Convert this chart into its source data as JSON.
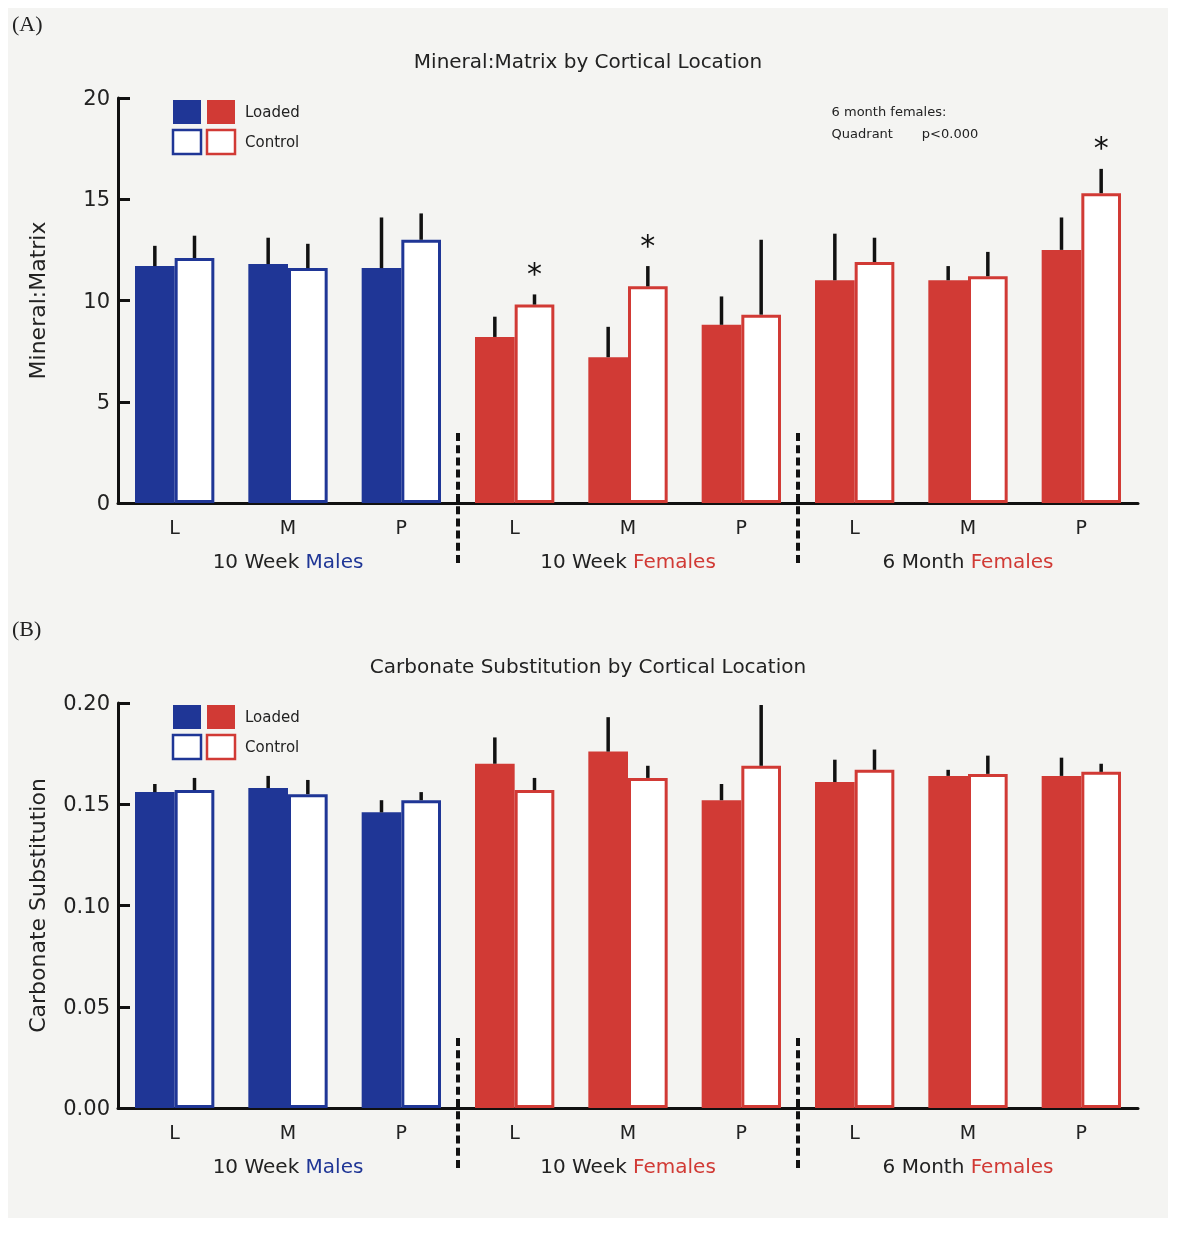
{
  "chart_data": [
    {
      "type": "bar",
      "title": "Mineral:Matrix by Cortical Location",
      "ylabel": "Mineral:Matrix",
      "categories": [
        "L",
        "M",
        "P",
        "L",
        "M",
        "P",
        "L",
        "M",
        "P"
      ],
      "series": [
        {
          "name": "Loaded",
          "colors": [
            "#1f3696",
            "#1f3696",
            "#1f3696",
            "#d13a35",
            "#d13a35",
            "#d13a35",
            "#d13a35",
            "#d13a35",
            "#d13a35"
          ],
          "values": [
            11.7,
            11.8,
            11.6,
            8.2,
            7.2,
            8.8,
            11.0,
            11.0,
            12.5
          ],
          "errors": [
            [
              11.7,
              12.7
            ],
            [
              11.8,
              13.1
            ],
            [
              11.6,
              14.1
            ],
            [
              8.2,
              9.2
            ],
            [
              7.2,
              8.7
            ],
            [
              8.8,
              10.2
            ],
            [
              11.0,
              13.3
            ],
            [
              11.0,
              11.7
            ],
            [
              12.5,
              14.1
            ]
          ]
        },
        {
          "name": "Control",
          "colors": [
            "#1f3696",
            "#1f3696",
            "#1f3696",
            "#d13a35",
            "#d13a35",
            "#d13a35",
            "#d13a35",
            "#d13a35",
            "#d13a35"
          ],
          "values": [
            12.1,
            11.6,
            13.0,
            9.8,
            10.7,
            9.3,
            11.9,
            11.2,
            15.3
          ],
          "errors": [
            [
              12.1,
              13.2
            ],
            [
              11.6,
              12.8
            ],
            [
              13.0,
              14.3
            ],
            [
              9.8,
              10.3
            ],
            [
              10.7,
              11.7
            ],
            [
              9.3,
              13.0
            ],
            [
              11.9,
              13.1
            ],
            [
              11.2,
              12.4
            ],
            [
              15.3,
              16.5
            ]
          ],
          "value_labels": [
            null,
            null,
            null,
            "*",
            "*",
            null,
            null,
            null,
            "*"
          ]
        }
      ],
      "ylim": [
        0,
        20
      ],
      "yticks": [
        0,
        5,
        10,
        15,
        20
      ],
      "grid": false,
      "legend": "top left",
      "annotations": [
        "(A)",
        "6 month females:\nQuadrant       p<0.000",
        "10 Week Males",
        "10 Week Females",
        "6 Month Females"
      ]
    },
    {
      "type": "bar",
      "title": "Carbonate Substitution by Cortical Location",
      "ylabel": "Carbonate Substitution",
      "categories": [
        "L",
        "M",
        "P",
        "L",
        "M",
        "P",
        "L",
        "M",
        "P"
      ],
      "series": [
        {
          "name": "Loaded",
          "colors": [
            "#1f3696",
            "#1f3696",
            "#1f3696",
            "#d13a35",
            "#d13a35",
            "#d13a35",
            "#d13a35",
            "#d13a35",
            "#d13a35"
          ],
          "values": [
            0.156,
            0.158,
            0.146,
            0.17,
            0.176,
            0.152,
            0.161,
            0.164,
            0.164
          ],
          "errors": [
            [
              0.156,
              0.16
            ],
            [
              0.158,
              0.164
            ],
            [
              0.146,
              0.152
            ],
            [
              0.17,
              0.183
            ],
            [
              0.176,
              0.193
            ],
            [
              0.152,
              0.16
            ],
            [
              0.161,
              0.172
            ],
            [
              0.164,
              0.167
            ],
            [
              0.164,
              0.173
            ]
          ]
        },
        {
          "name": "Control",
          "colors": [
            "#1f3696",
            "#1f3696",
            "#1f3696",
            "#d13a35",
            "#d13a35",
            "#d13a35",
            "#d13a35",
            "#d13a35",
            "#d13a35"
          ],
          "values": [
            0.157,
            0.155,
            0.152,
            0.157,
            0.163,
            0.169,
            0.167,
            0.165,
            0.166
          ],
          "errors": [
            [
              0.157,
              0.163
            ],
            [
              0.155,
              0.162
            ],
            [
              0.152,
              0.156
            ],
            [
              0.157,
              0.163
            ],
            [
              0.163,
              0.169
            ],
            [
              0.169,
              0.199
            ],
            [
              0.167,
              0.177
            ],
            [
              0.165,
              0.174
            ],
            [
              0.166,
              0.17
            ]
          ]
        }
      ],
      "ylim": [
        0,
        0.2
      ],
      "yticks": [
        {
          "value": 0,
          "label": "0.00"
        },
        {
          "value": 0.05,
          "label": "0.05"
        },
        {
          "value": 0.1,
          "label": "0.10"
        },
        {
          "value": 0.15,
          "label": "0.15"
        },
        {
          "value": 0.2,
          "label": "0.20"
        }
      ],
      "grid": false,
      "legend": "top left",
      "annotations": [
        "(B)",
        "10 Week Males",
        "10 Week Females",
        "6 Month Females"
      ]
    }
  ]
}
